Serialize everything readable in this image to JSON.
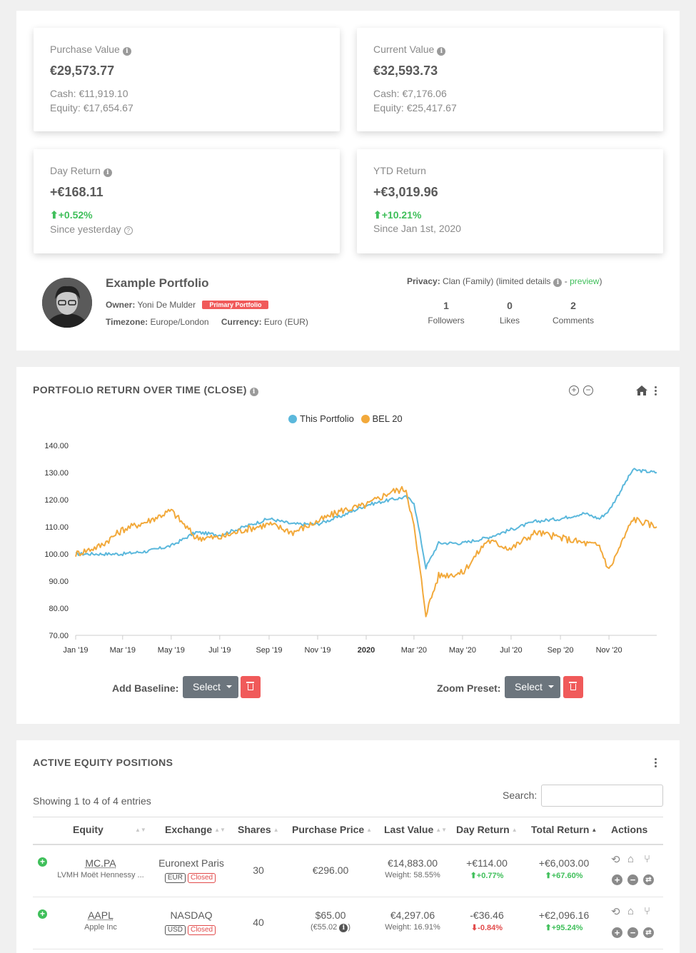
{
  "stats": {
    "purchase": {
      "label": "Purchase Value",
      "value": "€29,573.77",
      "line1": "Cash: €11,919.10",
      "line2": "Equity: €17,654.67"
    },
    "current": {
      "label": "Current Value",
      "value": "€32,593.73",
      "line1": "Cash: €7,176.06",
      "line2": "Equity: €25,417.67"
    },
    "day": {
      "label": "Day Return",
      "value": "+€168.11",
      "pct": "+0.52%",
      "since": "Since yesterday"
    },
    "ytd": {
      "label": "YTD Return",
      "value": "+€3,019.96",
      "pct": "+10.21%",
      "since": "Since Jan 1st, 2020"
    }
  },
  "portfolio": {
    "name": "Example Portfolio",
    "owner_label": "Owner:",
    "owner": "Yoni De Mulder",
    "badge": "Primary Portfolio",
    "timezone_label": "Timezone:",
    "timezone": "Europe/London",
    "currency_label": "Currency:",
    "currency": "Euro (EUR)",
    "privacy_label": "Privacy:",
    "privacy": "Clan (Family) (limited details",
    "preview_sep": " - ",
    "preview": "preview",
    "preview_close": ")",
    "followers_count": "1",
    "followers_label": "Followers",
    "likes_count": "0",
    "likes_label": "Likes",
    "comments_count": "2",
    "comments_label": "Comments"
  },
  "chart_section": {
    "title": "PORTFOLIO RETURN OVER TIME (CLOSE)",
    "add_baseline_label": "Add Baseline:",
    "select_label": "Select",
    "zoom_preset_label": "Zoom Preset:",
    "zoom_select_label": "Select"
  },
  "chart_data": {
    "type": "line",
    "title": "",
    "legend_position": "top-center",
    "grid": false,
    "ylim": [
      70,
      140
    ],
    "y_ticks": [
      "140.00",
      "130.00",
      "120.00",
      "110.00",
      "100.00",
      "90.00",
      "80.00",
      "70.00"
    ],
    "x_ticks": [
      "Jan '19",
      "Mar '19",
      "May '19",
      "Jul '19",
      "Sep '19",
      "Nov '19",
      "2020",
      "Mar '20",
      "May '20",
      "Jul '20",
      "Sep '20",
      "Nov '20"
    ],
    "x_range": [
      "2019-01-01",
      "2020-12-31"
    ],
    "series": [
      {
        "name": "This Portfolio",
        "color": "#5bb8dc",
        "x": [
          "2019-01-01",
          "2019-02-01",
          "2019-03-01",
          "2019-04-01",
          "2019-05-01",
          "2019-06-01",
          "2019-07-01",
          "2019-08-01",
          "2019-09-01",
          "2019-10-01",
          "2019-11-01",
          "2019-12-01",
          "2020-01-01",
          "2020-02-01",
          "2020-02-20",
          "2020-03-01",
          "2020-03-16",
          "2020-04-01",
          "2020-05-01",
          "2020-06-01",
          "2020-07-01",
          "2020-08-01",
          "2020-09-01",
          "2020-10-01",
          "2020-10-20",
          "2020-11-01",
          "2020-12-01",
          "2020-12-31"
        ],
        "values": [
          100,
          100,
          100,
          101,
          103,
          108,
          107,
          110,
          113,
          111,
          111,
          114,
          118,
          120,
          121,
          119,
          95,
          104,
          104,
          106,
          109,
          112,
          113,
          115,
          113,
          116,
          131,
          130
        ]
      },
      {
        "name": "BEL 20",
        "color": "#f2a93b",
        "x": [
          "2019-01-01",
          "2019-02-01",
          "2019-03-01",
          "2019-04-01",
          "2019-05-01",
          "2019-06-01",
          "2019-07-01",
          "2019-08-01",
          "2019-09-01",
          "2019-10-01",
          "2019-11-01",
          "2019-12-01",
          "2020-01-01",
          "2020-02-01",
          "2020-02-20",
          "2020-03-01",
          "2020-03-16",
          "2020-04-01",
          "2020-05-01",
          "2020-06-01",
          "2020-07-01",
          "2020-08-01",
          "2020-09-01",
          "2020-10-01",
          "2020-10-20",
          "2020-11-01",
          "2020-12-01",
          "2020-12-31"
        ],
        "values": [
          100,
          103,
          109,
          112,
          116,
          106,
          106,
          109,
          111,
          108,
          112,
          116,
          118,
          123,
          124,
          110,
          78,
          92,
          93,
          105,
          102,
          108,
          106,
          104,
          103,
          94,
          113,
          110
        ]
      }
    ]
  },
  "positions": {
    "title": "ACTIVE EQUITY POSITIONS",
    "showing": "Showing 1 to 4 of 4 entries",
    "search_label": "Search:",
    "search_value": "",
    "headers": [
      "Equity",
      "Exchange",
      "Shares",
      "Purchase Price",
      "Last Value",
      "Day Return",
      "Total Return",
      "Actions"
    ],
    "rows": [
      {
        "ticker": "MC.PA",
        "name": "LVMH Moët Hennessy ...",
        "exchange": "Euronext Paris",
        "currency": "EUR",
        "status": "Closed",
        "shares": "30",
        "purchase_price": "€296.00",
        "purchase_sub": "",
        "last_value": "€14,883.00",
        "weight": "Weight: 58.55%",
        "day_return": "+€114.00",
        "day_pct": "+0.77%",
        "day_dir": "up",
        "total_return": "+€6,003.00",
        "total_pct": "+67.60%"
      },
      {
        "ticker": "AAPL",
        "name": "Apple Inc",
        "exchange": "NASDAQ",
        "currency": "USD",
        "status": "Closed",
        "shares": "40",
        "purchase_price": "$65.00",
        "purchase_sub": "(€55.02",
        "last_value": "€4,297.06",
        "weight": "Weight: 16.91%",
        "day_return": "-€36.46",
        "day_pct": "-0.84%",
        "day_dir": "down",
        "total_return": "+€2,096.16",
        "total_pct": "+95.24%"
      }
    ]
  }
}
